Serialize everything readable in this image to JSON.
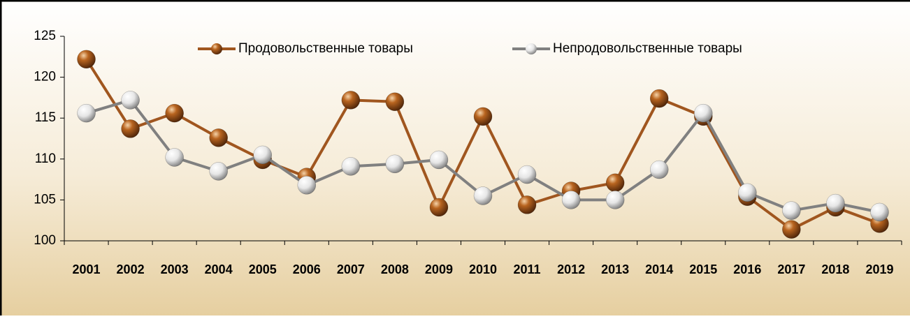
{
  "chart_data": {
    "type": "line",
    "categories": [
      "2001",
      "2002",
      "2003",
      "2004",
      "2005",
      "2006",
      "2007",
      "2008",
      "2009",
      "2010",
      "2011",
      "2012",
      "2013",
      "2014",
      "2015",
      "2016",
      "2017",
      "2018",
      "2019"
    ],
    "series": [
      {
        "name": "Продовольственные товары",
        "color": "#a0561f",
        "values": [
          122.2,
          113.7,
          115.6,
          112.6,
          109.9,
          107.8,
          117.2,
          117.0,
          104.1,
          115.2,
          104.4,
          106.1,
          107.1,
          117.4,
          115.2,
          105.4,
          101.4,
          104.1,
          102.1
        ]
      },
      {
        "name": "Непродовольственные товары",
        "color": "#808080",
        "values": [
          115.6,
          117.2,
          110.2,
          108.5,
          110.5,
          106.8,
          109.1,
          109.4,
          109.9,
          105.5,
          108.1,
          105.0,
          105.0,
          108.7,
          115.6,
          105.9,
          103.7,
          104.6,
          103.5
        ]
      }
    ],
    "ylim": [
      100,
      125
    ],
    "yticks": [
      100,
      105,
      110,
      115,
      120,
      125
    ],
    "grid": false,
    "legend": "top"
  }
}
